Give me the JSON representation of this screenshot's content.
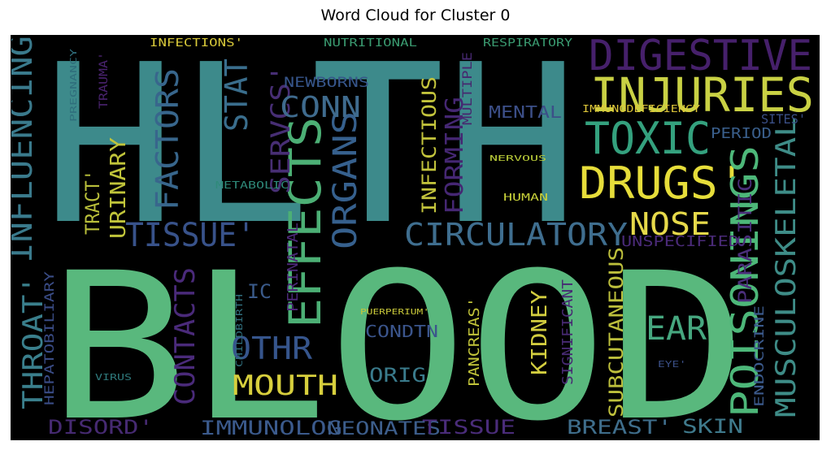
{
  "chart_data": {
    "type": "wordcloud",
    "title": "Word Cloud for Cluster 0",
    "background": "#000000",
    "colormap": "viridis",
    "words": [
      {
        "text": "HLTH",
        "color": "#3d8a8b"
      },
      {
        "text": "BLOOD",
        "color": "#59b87d"
      },
      {
        "text": "INJURIES",
        "color": "#c9d144"
      },
      {
        "text": "DIGESTIVE",
        "color": "#46206b"
      },
      {
        "text": "TOXIC",
        "color": "#34a17e"
      },
      {
        "text": "DRUGS'",
        "color": "#e6dd3a"
      },
      {
        "text": "POISONINGS",
        "color": "#4db779"
      },
      {
        "text": "MUSCULOSKELETAL",
        "color": "#3e8c87"
      },
      {
        "text": "EFFECTS",
        "color": "#4caf75"
      },
      {
        "text": "ORGANS",
        "color": "#36608d"
      },
      {
        "text": "CIRCULATORY",
        "color": "#3f6e8f"
      },
      {
        "text": "NOSE",
        "color": "#e6d94a"
      },
      {
        "text": "EAR",
        "color": "#46a77f"
      },
      {
        "text": "TISSUE'",
        "color": "#38528a"
      },
      {
        "text": "FACTORS",
        "color": "#38668c"
      },
      {
        "text": "STAT",
        "color": "#3a6e8d"
      },
      {
        "text": "SERVCS'",
        "color": "#472e74"
      },
      {
        "text": "CONN",
        "color": "#3f6b8e"
      },
      {
        "text": "INFLUENCING",
        "color": "#3a7a8c"
      },
      {
        "text": "THROAT'",
        "color": "#3a7f8c"
      },
      {
        "text": "CONTACTS",
        "color": "#4a2a7a"
      },
      {
        "text": "OTHR",
        "color": "#36558c"
      },
      {
        "text": "MOUTH",
        "color": "#d7cf3d"
      },
      {
        "text": "URINARY",
        "color": "#c0c43a"
      },
      {
        "text": "TRACT'",
        "color": "#b8be3a"
      },
      {
        "text": "INFECTIOUS",
        "color": "#c3c43c"
      },
      {
        "text": "FORMING",
        "color": "#452773"
      },
      {
        "text": "KIDNEY",
        "color": "#d2cd3f"
      },
      {
        "text": "SUBCUTANEOUS",
        "color": "#bdbf3c"
      },
      {
        "text": "PARASITIC",
        "color": "#4a2e7a"
      },
      {
        "text": "BREAST'",
        "color": "#3f6e8c"
      },
      {
        "text": "SKIN",
        "color": "#3f7a8c"
      },
      {
        "text": "IMMUNOLOG",
        "color": "#3b5a8c"
      },
      {
        "text": "NEONATES",
        "color": "#3d5e8c"
      },
      {
        "text": "TISSUE",
        "color": "#4a2c7a"
      },
      {
        "text": "DISORD'",
        "color": "#462a72"
      },
      {
        "text": "ORIG",
        "color": "#3a7b8c"
      },
      {
        "text": "CONDTN",
        "color": "#3b558c"
      },
      {
        "text": "IC",
        "color": "#3a5a8a"
      },
      {
        "text": "PERINATAL",
        "color": "#4b2877"
      },
      {
        "text": "HEPATOBILIARY",
        "color": "#3a4c86"
      },
      {
        "text": "PANCREAS'",
        "color": "#c2c43a"
      },
      {
        "text": "SIGNIFICANT",
        "color": "#472a73"
      },
      {
        "text": "ENDOCRINE",
        "color": "#3b5a8c"
      },
      {
        "text": "UNSPECIFIED",
        "color": "#4a2a78"
      },
      {
        "text": "MENTAL",
        "color": "#3c4f88"
      },
      {
        "text": "PERIOD",
        "color": "#3a5f8c"
      },
      {
        "text": "SITES'",
        "color": "#3a4f86"
      },
      {
        "text": "MULTIPLE",
        "color": "#46286f"
      },
      {
        "text": "NEWBORNS",
        "color": "#36558a"
      },
      {
        "text": "TRAUMA'",
        "color": "#4a236f"
      },
      {
        "text": "PREGNANCY",
        "color": "#2f6e7c"
      },
      {
        "text": "INFECTIONS'",
        "color": "#d8c93a"
      },
      {
        "text": "NUTRITIONAL",
        "color": "#3a9a70"
      },
      {
        "text": "RESPIRATORY",
        "color": "#3a9a70"
      },
      {
        "text": "IMMUNODEFICIENCY",
        "color": "#e0c83a"
      },
      {
        "text": "METABOLIC",
        "color": "#2f8a7a"
      },
      {
        "text": "NERVOUS",
        "color": "#bfd23a"
      },
      {
        "text": "HUMAN",
        "color": "#c8d13a"
      },
      {
        "text": "CHILDBIRTH",
        "color": "#2f6e7c"
      },
      {
        "text": "PUERPERIUM'",
        "color": "#c8c83a"
      },
      {
        "text": "VIRUS",
        "color": "#2f7a7c"
      },
      {
        "text": "EYE'",
        "color": "#3a4f86"
      }
    ]
  }
}
